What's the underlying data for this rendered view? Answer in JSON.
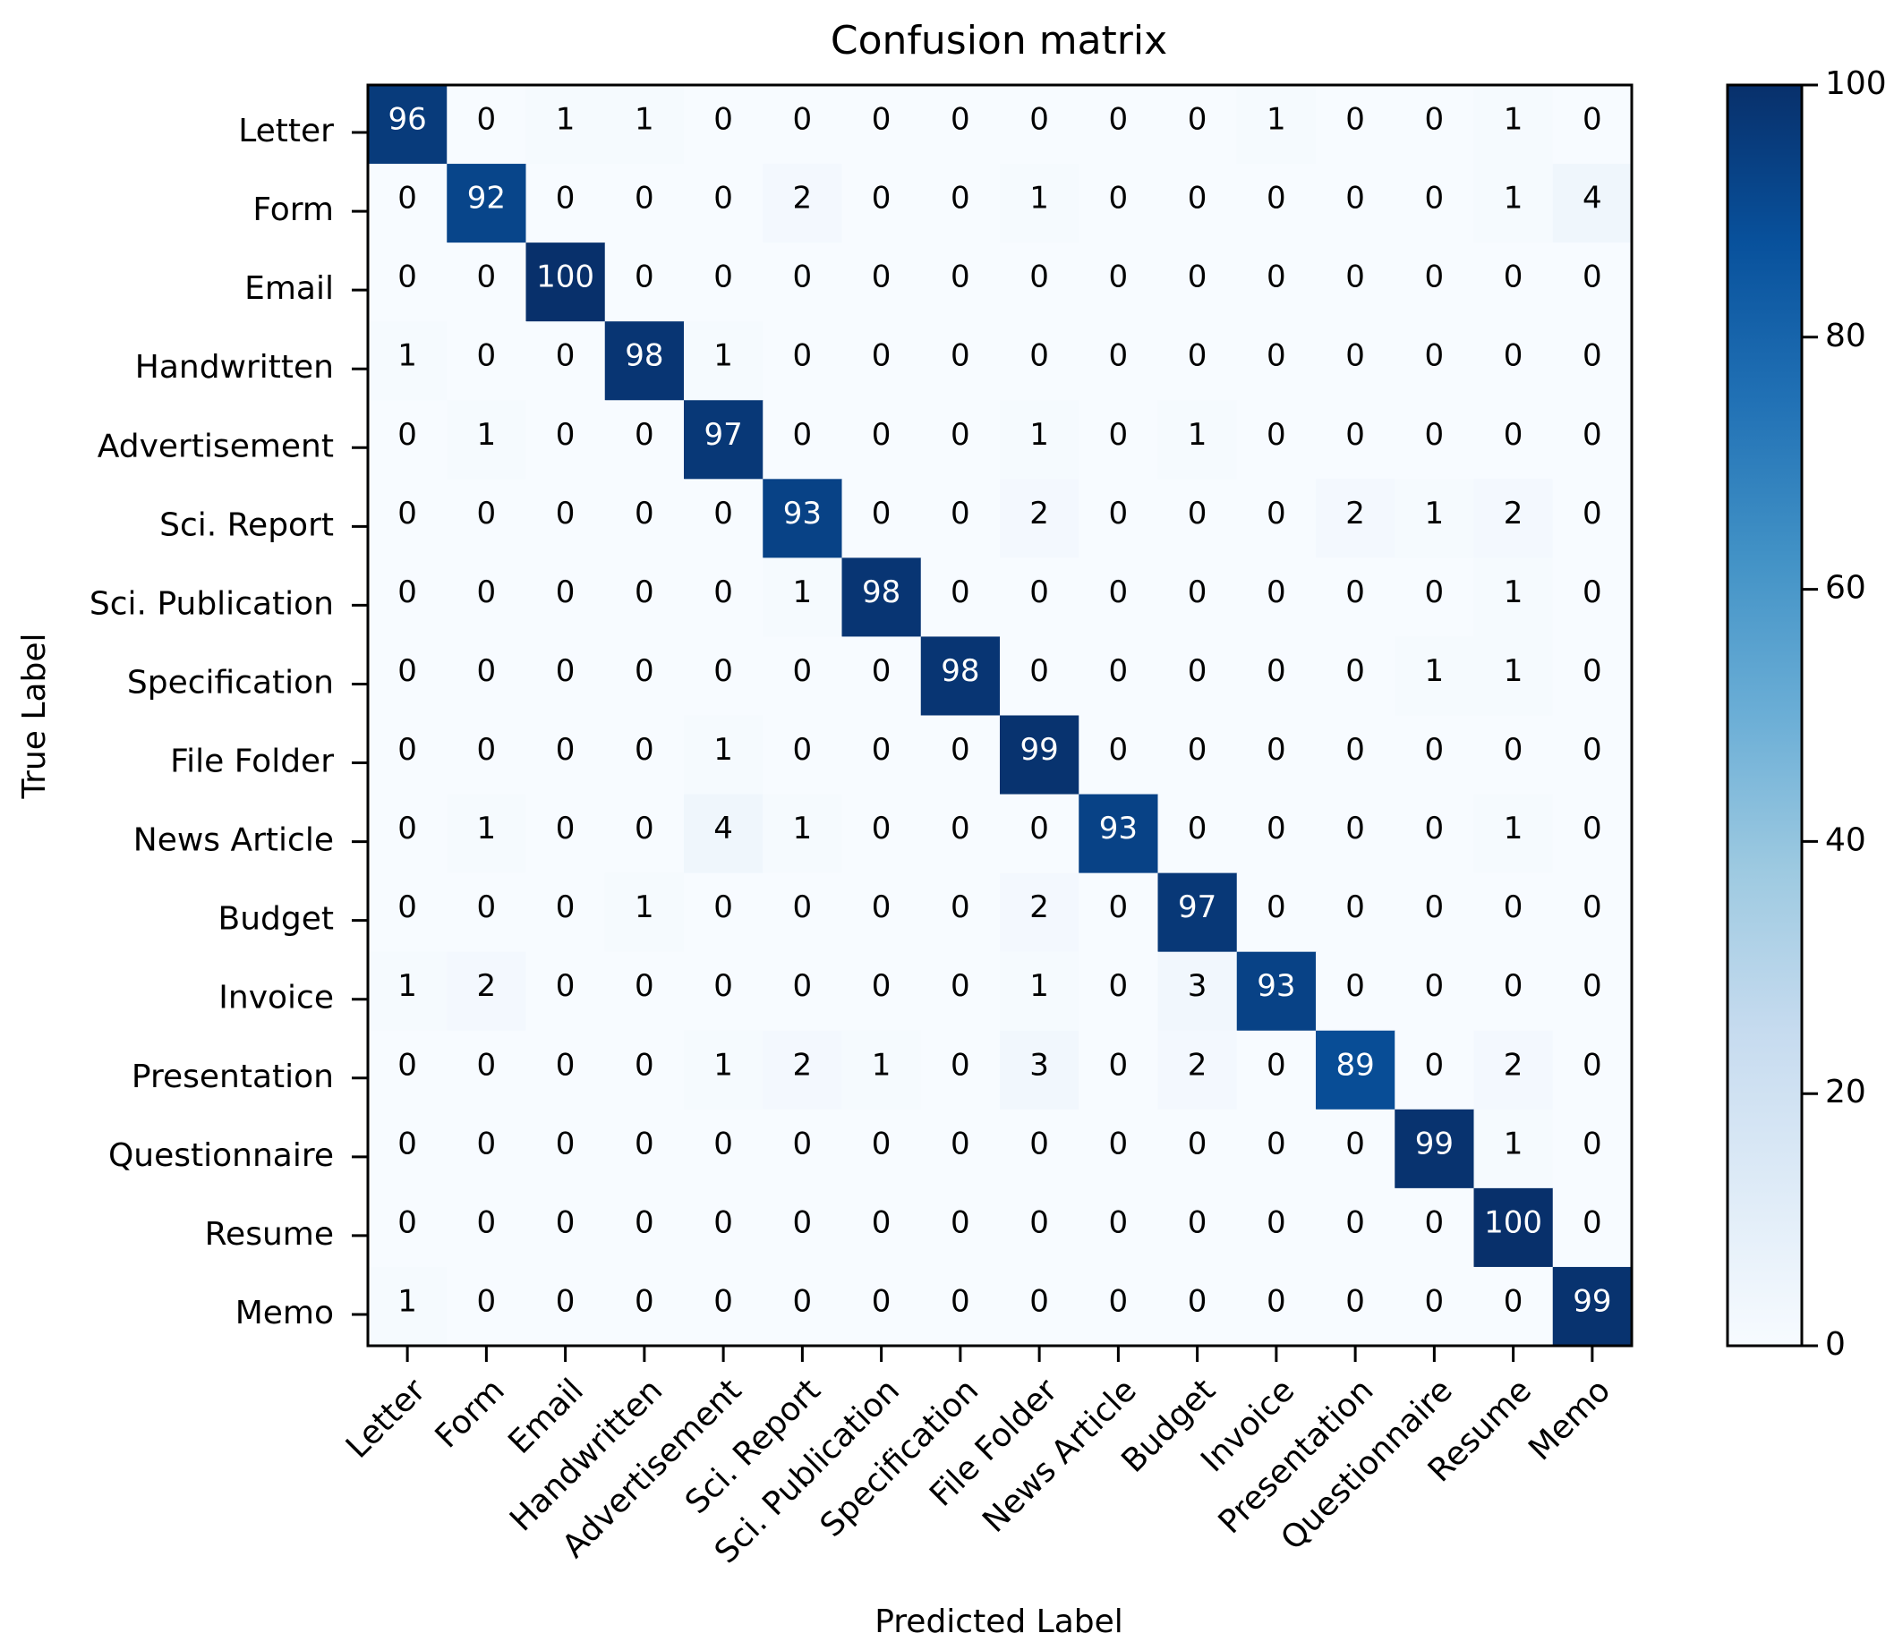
{
  "chart_data": {
    "type": "heatmap",
    "title": "Confusion matrix",
    "xlabel": "Predicted Label",
    "ylabel": "True Label",
    "categories": [
      "Letter",
      "Form",
      "Email",
      "Handwritten",
      "Advertisement",
      "Sci. Report",
      "Sci. Publication",
      "Specification",
      "File Folder",
      "News Article",
      "Budget",
      "Invoice",
      "Presentation",
      "Questionnaire",
      "Resume",
      "Memo"
    ],
    "values": [
      [
        96,
        0,
        1,
        1,
        0,
        0,
        0,
        0,
        0,
        0,
        0,
        1,
        0,
        0,
        1,
        0
      ],
      [
        0,
        92,
        0,
        0,
        0,
        2,
        0,
        0,
        1,
        0,
        0,
        0,
        0,
        0,
        1,
        4
      ],
      [
        0,
        0,
        100,
        0,
        0,
        0,
        0,
        0,
        0,
        0,
        0,
        0,
        0,
        0,
        0,
        0
      ],
      [
        1,
        0,
        0,
        98,
        1,
        0,
        0,
        0,
        0,
        0,
        0,
        0,
        0,
        0,
        0,
        0
      ],
      [
        0,
        1,
        0,
        0,
        97,
        0,
        0,
        0,
        1,
        0,
        1,
        0,
        0,
        0,
        0,
        0
      ],
      [
        0,
        0,
        0,
        0,
        0,
        93,
        0,
        0,
        2,
        0,
        0,
        0,
        2,
        1,
        2,
        0
      ],
      [
        0,
        0,
        0,
        0,
        0,
        1,
        98,
        0,
        0,
        0,
        0,
        0,
        0,
        0,
        1,
        0
      ],
      [
        0,
        0,
        0,
        0,
        0,
        0,
        0,
        98,
        0,
        0,
        0,
        0,
        0,
        1,
        1,
        0
      ],
      [
        0,
        0,
        0,
        0,
        1,
        0,
        0,
        0,
        99,
        0,
        0,
        0,
        0,
        0,
        0,
        0
      ],
      [
        0,
        1,
        0,
        0,
        4,
        1,
        0,
        0,
        0,
        93,
        0,
        0,
        0,
        0,
        1,
        0
      ],
      [
        0,
        0,
        0,
        1,
        0,
        0,
        0,
        0,
        2,
        0,
        97,
        0,
        0,
        0,
        0,
        0
      ],
      [
        1,
        2,
        0,
        0,
        0,
        0,
        0,
        0,
        1,
        0,
        3,
        93,
        0,
        0,
        0,
        0
      ],
      [
        0,
        0,
        0,
        0,
        1,
        2,
        1,
        0,
        3,
        0,
        2,
        0,
        89,
        0,
        2,
        0
      ],
      [
        0,
        0,
        0,
        0,
        0,
        0,
        0,
        0,
        0,
        0,
        0,
        0,
        0,
        99,
        1,
        0
      ],
      [
        0,
        0,
        0,
        0,
        0,
        0,
        0,
        0,
        0,
        0,
        0,
        0,
        0,
        0,
        100,
        0
      ],
      [
        1,
        0,
        0,
        0,
        0,
        0,
        0,
        0,
        0,
        0,
        0,
        0,
        0,
        0,
        0,
        99
      ]
    ],
    "color_range": [
      0,
      100
    ],
    "colorbar_ticks": [
      0,
      20,
      40,
      60,
      80,
      100
    ],
    "colormap": "Blues",
    "colors": {
      "low": "#f7fbff",
      "high": "#08306b",
      "text_on_dark": "#ffffff",
      "text_on_light": "#000000"
    }
  }
}
